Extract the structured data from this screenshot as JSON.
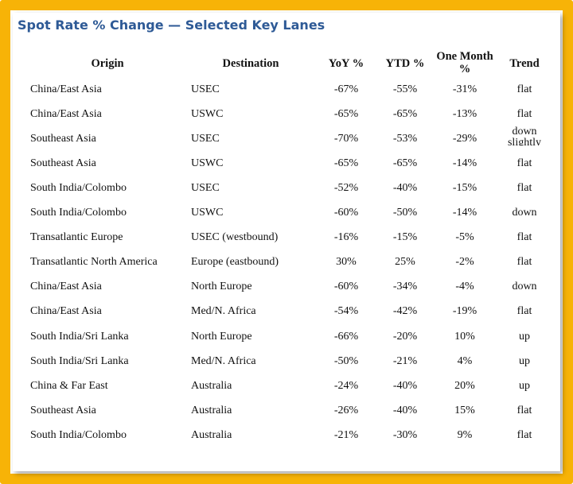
{
  "title": "Spot Rate % Change — Selected Key Lanes",
  "columns": {
    "origin": "Origin",
    "destination": "Destination",
    "yoy": "YoY %",
    "ytd": "YTD %",
    "month": "One Month %",
    "trend": "Trend"
  },
  "rows": [
    {
      "origin": "China/East Asia",
      "destination": "USEC",
      "yoy": "-67%",
      "ytd": "-55%",
      "month": "-31%",
      "trend": "flat"
    },
    {
      "origin": "China/East Asia",
      "destination": "USWC",
      "yoy": "-65%",
      "ytd": "-65%",
      "month": "-13%",
      "trend": "flat"
    },
    {
      "origin": "Southeast Asia",
      "destination": "USEC",
      "yoy": "-70%",
      "ytd": "-53%",
      "month": "-29%",
      "trend": "down slightly"
    },
    {
      "origin": "Southeast Asia",
      "destination": "USWC",
      "yoy": "-65%",
      "ytd": "-65%",
      "month": "-14%",
      "trend": "flat"
    },
    {
      "origin": "South India/Colombo",
      "destination": "USEC",
      "yoy": "-52%",
      "ytd": "-40%",
      "month": "-15%",
      "trend": "flat"
    },
    {
      "origin": "South India/Colombo",
      "destination": "USWC",
      "yoy": "-60%",
      "ytd": "-50%",
      "month": "-14%",
      "trend": "down"
    },
    {
      "origin": "Transatlantic Europe",
      "destination": "USEC (westbound)",
      "yoy": "-16%",
      "ytd": "-15%",
      "month": "-5%",
      "trend": "flat"
    },
    {
      "origin": "Transatlantic North  America",
      "destination": "Europe (eastbound)",
      "yoy": "30%",
      "ytd": "25%",
      "month": "-2%",
      "trend": "flat"
    },
    {
      "origin": "China/East Asia",
      "destination": "North Europe",
      "yoy": "-60%",
      "ytd": "-34%",
      "month": "-4%",
      "trend": "down"
    },
    {
      "origin": "China/East Asia",
      "destination": "Med/N. Africa",
      "yoy": "-54%",
      "ytd": "-42%",
      "month": "-19%",
      "trend": "flat"
    },
    {
      "origin": "South India/Sri Lanka",
      "destination": "North Europe",
      "yoy": "-66%",
      "ytd": "-20%",
      "month": "10%",
      "trend": "up"
    },
    {
      "origin": "South India/Sri Lanka",
      "destination": "Med/N. Africa",
      "yoy": "-50%",
      "ytd": "-21%",
      "month": "4%",
      "trend": "up"
    },
    {
      "origin": "China & Far East",
      "destination": "Australia",
      "yoy": "-24%",
      "ytd": "-40%",
      "month": "20%",
      "trend": "up"
    },
    {
      "origin": "Southeast Asia",
      "destination": "Australia",
      "yoy": "-26%",
      "ytd": "-40%",
      "month": "15%",
      "trend": "flat"
    },
    {
      "origin": "South India/Colombo",
      "destination": "Australia",
      "yoy": "-21%",
      "ytd": "-30%",
      "month": "9%",
      "trend": "flat"
    }
  ],
  "colors": {
    "frame": "#f7b307",
    "title": "#2e5a96"
  }
}
